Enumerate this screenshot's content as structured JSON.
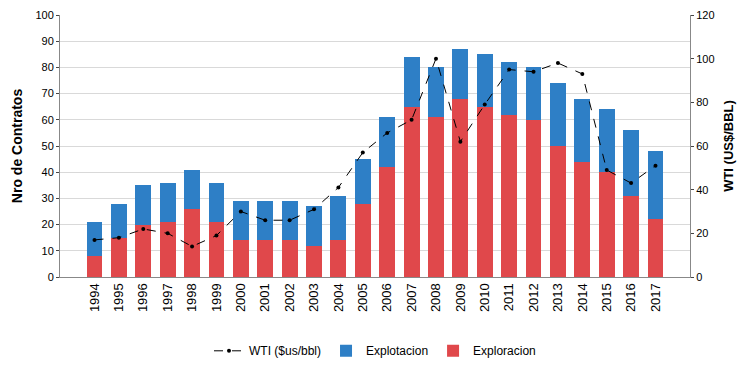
{
  "chart_data": {
    "type": "bar",
    "stacked": true,
    "grid": true,
    "legend": "bottom",
    "y_label": "Nro de Contratos",
    "y2_label": "WTI (US$/BBL)",
    "categories": [
      "1994",
      "1995",
      "1996",
      "1997",
      "1998",
      "1999",
      "2000",
      "2001",
      "2002",
      "2003",
      "2004",
      "2005",
      "2006",
      "2007",
      "2008",
      "2009",
      "2010",
      "2011",
      "2012",
      "2013",
      "2014",
      "2015",
      "2016",
      "2017"
    ],
    "ylim": [
      0,
      100
    ],
    "yticks": [
      0,
      10,
      20,
      30,
      40,
      50,
      60,
      70,
      80,
      90,
      100
    ],
    "y2lim": [
      0,
      120
    ],
    "y2ticks": [
      0,
      20,
      40,
      60,
      80,
      100,
      120
    ],
    "series": [
      {
        "name": "Exploracion",
        "type": "bar",
        "color": "#e0484b",
        "values": [
          8,
          15,
          20,
          21,
          26,
          21,
          14,
          14,
          14,
          12,
          14,
          28,
          42,
          65,
          61,
          68,
          65,
          62,
          60,
          50,
          44,
          40,
          31,
          22
        ]
      },
      {
        "name": "Explotacion",
        "type": "bar",
        "color": "#2e7fc6",
        "values": [
          13,
          13,
          15,
          15,
          15,
          15,
          15,
          15,
          15,
          15,
          17,
          17,
          19,
          19,
          19,
          19,
          20,
          20,
          20,
          24,
          24,
          24,
          25,
          26
        ]
      },
      {
        "name": "WTI ($us/bbl)",
        "type": "line",
        "axis": "y2",
        "color": "#000000",
        "line_style": "dashed",
        "marker": "circle",
        "values": [
          17,
          18,
          22,
          20,
          14,
          19,
          30,
          26,
          26,
          31,
          41,
          57,
          66,
          72,
          100,
          62,
          79,
          95,
          94,
          98,
          93,
          49,
          43,
          51
        ]
      }
    ]
  }
}
